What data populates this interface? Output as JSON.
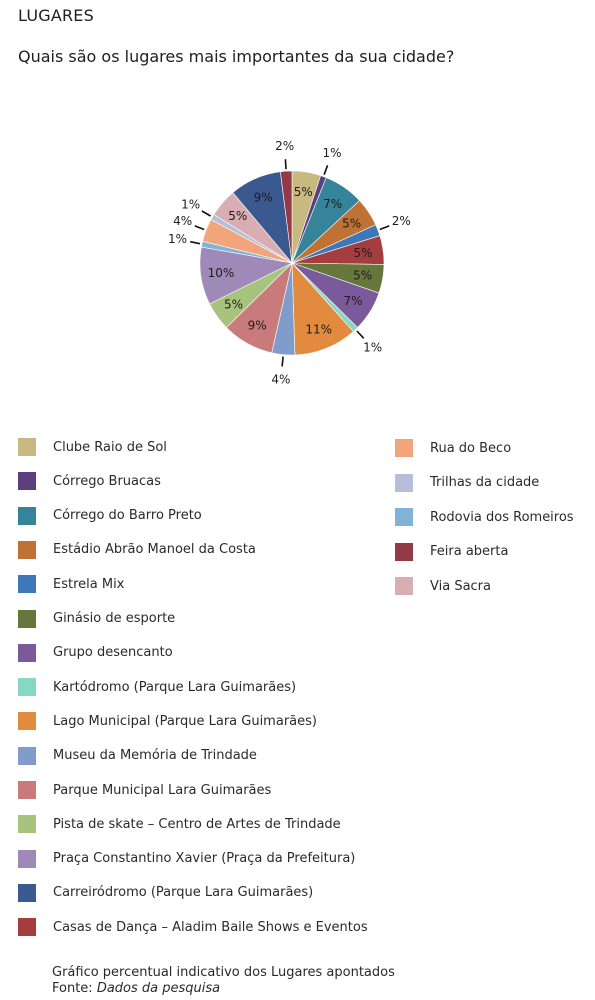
{
  "header": {
    "title": "LUGARES",
    "question": "Quais são os lugares mais importantes da sua cidade?"
  },
  "chart_data": {
    "type": "pie",
    "categories": [
      "Clube Raio de Sol",
      "Córrego Bruacas",
      "Córrego do Barro Preto",
      "Estádio Abrão Manoel da Costa",
      "Estrela Mix",
      "Ginásio de esporte",
      "Grupo desencanto",
      "Kartódromo (Parque Lara Guimarães)",
      "Lago Municipal (Parque Lara Guimarães)",
      "Museu da Memória de Trindade",
      "Parque Municipal Lara Guimarães",
      "Pista de skate – Centro de Artes de Trindade",
      "Praça Constantino Xavier (Praça da Prefeitura)",
      "Carreiródromo (Parque Lara Guimarães)",
      "Casas de Dança – Aladim Baile Shows e Eventos",
      "Rua do Beco",
      "Trilhas da cidade",
      "Rodovia dos Romeiros",
      "Feira aberta",
      "Via Sacra"
    ],
    "colors": [
      "#c7b97f",
      "#5b3f7e",
      "#35849a",
      "#c07234",
      "#3f78b8",
      "#66773c",
      "#7b5a9c",
      "#86d8c4",
      "#e28a3e",
      "#7f9ccb",
      "#c97a7b",
      "#a8c37d",
      "#9e89b8",
      "#3a5a8f",
      "#a53d3e",
      "#f2a57a",
      "#b6bedb",
      "#80b3d6",
      "#943a46",
      "#d9aeb3"
    ],
    "slice_order": [
      0,
      1,
      2,
      3,
      4,
      14,
      5,
      6,
      7,
      8,
      9,
      10,
      11,
      12,
      17,
      15,
      16,
      19,
      13,
      18
    ],
    "slice_values": [
      5,
      1,
      7,
      5,
      2,
      5,
      5,
      7,
      1,
      11,
      4,
      9,
      5,
      10,
      1,
      4,
      1,
      5,
      9,
      2
    ],
    "slice_labels": [
      "5%",
      "1%",
      "7%",
      "5%",
      "2%",
      "5%",
      "5%",
      "7%",
      "1%",
      "11%",
      "4%",
      "9%",
      "5%",
      "10%",
      "1%",
      "4%",
      "1%",
      "5%",
      "9%",
      "2%"
    ],
    "unit": "%",
    "legend_placement": "bottom"
  },
  "footer": {
    "line1": "Gráfico percentual indicativo dos Lugares apontados",
    "source_prefix": "Fonte: ",
    "source": "Dados da pesquisa"
  }
}
